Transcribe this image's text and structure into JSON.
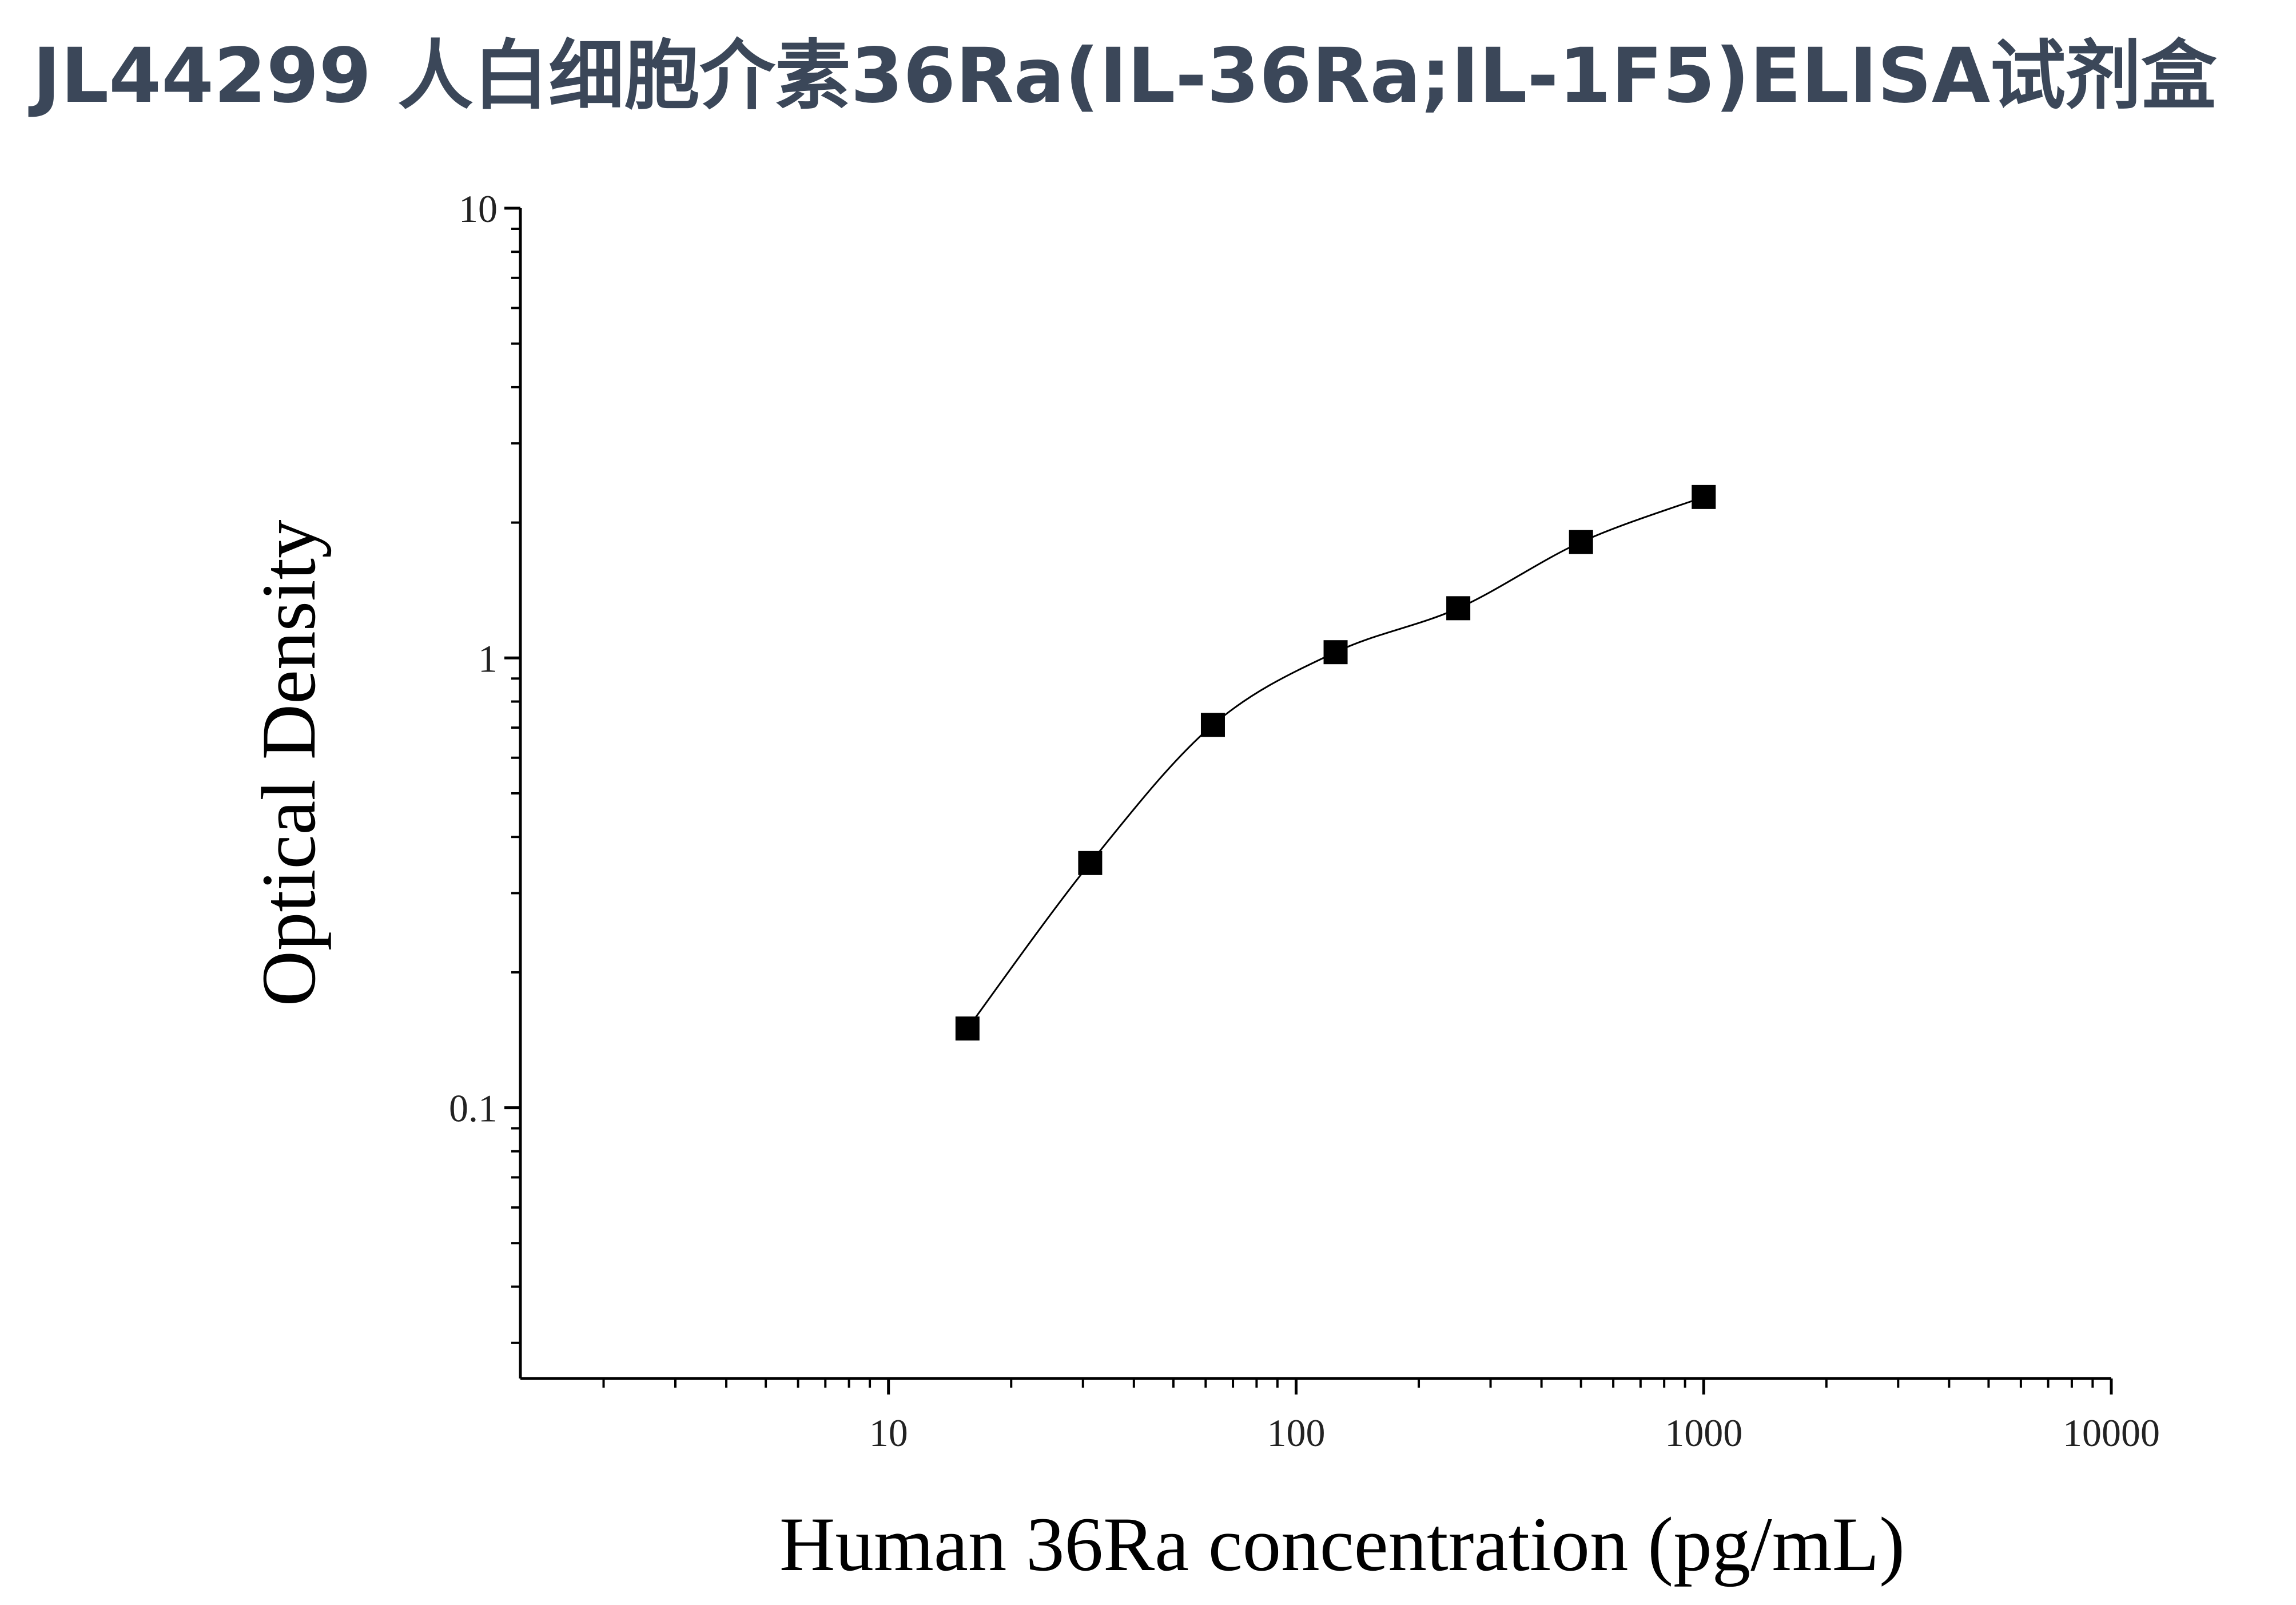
{
  "chart_data": {
    "type": "scatter",
    "title": "JL44299 人白细胞介素36Ra(IL-36Ra;IL-1F5)ELISA试剂盒",
    "x_label": "Human 36Ra concentration (pg/mL)",
    "y_label": "Optical Density",
    "x": [
      15.625,
      31.25,
      62.5,
      125,
      250,
      500,
      1000
    ],
    "values": [
      0.15,
      0.35,
      0.71,
      1.03,
      1.29,
      1.81,
      2.28
    ],
    "color": "#000000",
    "fit_line": true,
    "xscale": "log",
    "yscale": "log",
    "minor_ticks": true,
    "xlim": [
      1.25,
      10000
    ],
    "ylim": [
      0.025,
      10
    ],
    "xticks": [
      10,
      100,
      1000,
      10000
    ],
    "yticks": [
      0.1,
      1,
      10
    ]
  }
}
